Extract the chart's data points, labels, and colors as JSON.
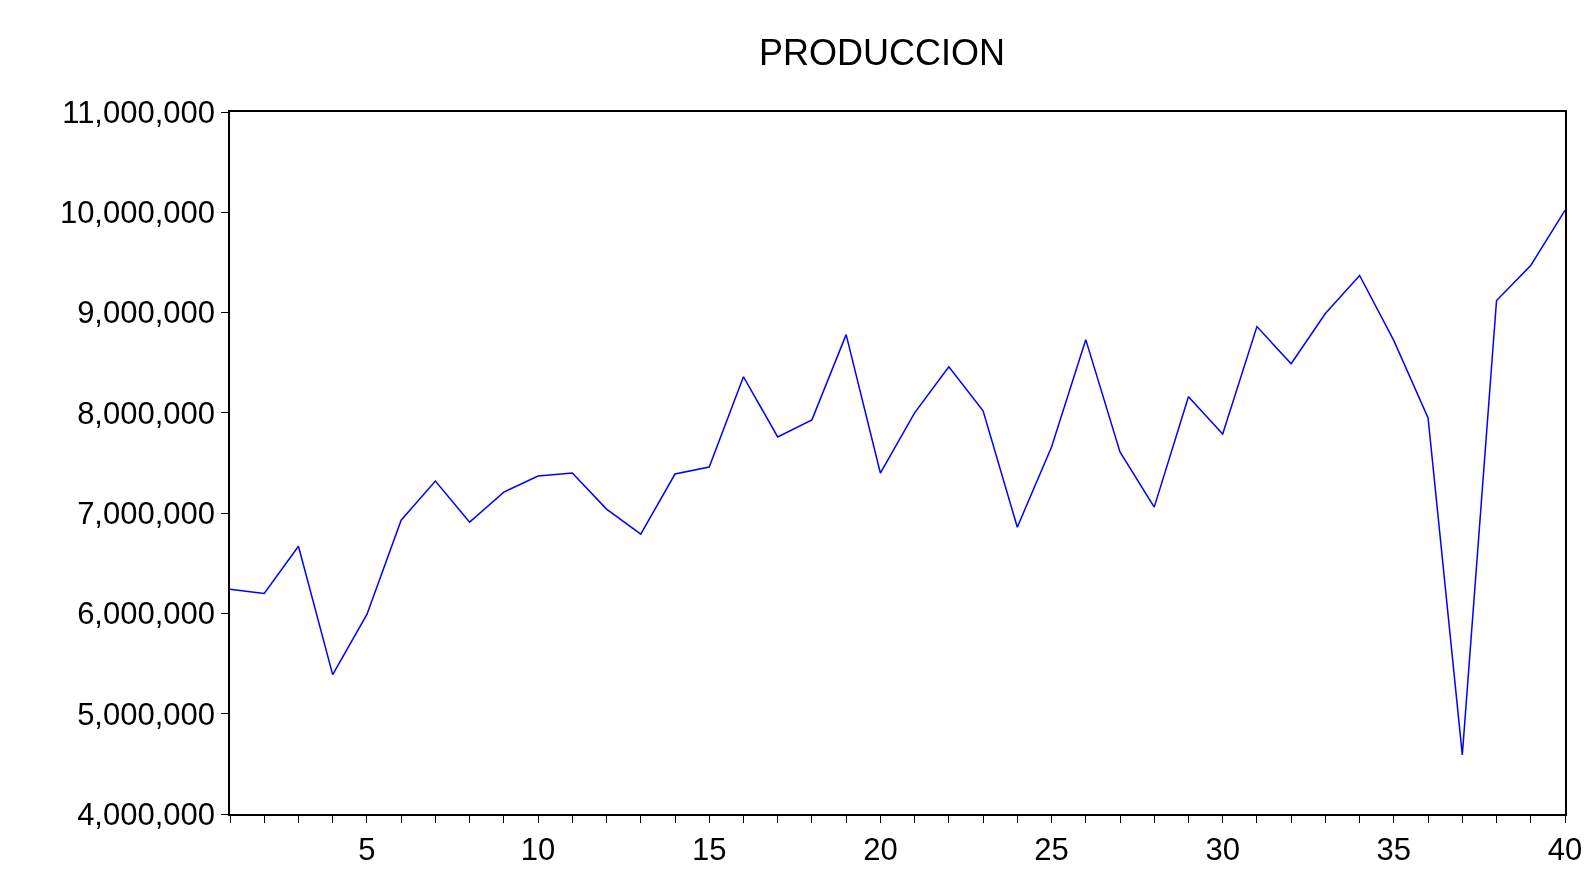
{
  "chart_data": {
    "type": "line",
    "title": "PRODUCCION",
    "x": [
      1,
      2,
      3,
      4,
      5,
      6,
      7,
      8,
      9,
      10,
      11,
      12,
      13,
      14,
      15,
      16,
      17,
      18,
      19,
      20,
      21,
      22,
      23,
      24,
      25,
      26,
      27,
      28,
      29,
      30,
      31,
      32,
      33,
      34,
      35,
      36,
      37,
      38,
      39,
      40
    ],
    "series": [
      {
        "color": "#0000ff",
        "values": [
          6240000,
          6200000,
          6670000,
          5390000,
          5990000,
          6930000,
          7320000,
          6910000,
          7210000,
          7370000,
          7400000,
          7040000,
          6790000,
          7390000,
          7460000,
          8360000,
          7760000,
          7930000,
          8780000,
          7400000,
          8000000,
          8460000,
          8020000,
          6860000,
          7660000,
          8730000,
          7610000,
          7060000,
          8160000,
          7790000,
          8860000,
          8490000,
          8990000,
          9370000,
          8720000,
          7950000,
          4590000,
          9120000,
          9470000,
          10020000
        ]
      }
    ],
    "xlim": [
      1,
      40
    ],
    "xticks": [
      {
        "value": 1,
        "label": null
      },
      {
        "value": 2,
        "label": null
      },
      {
        "value": 3,
        "label": null
      },
      {
        "value": 4,
        "label": null
      },
      5,
      {
        "value": 6,
        "label": null
      },
      {
        "value": 7,
        "label": null
      },
      {
        "value": 8,
        "label": null
      },
      {
        "value": 9,
        "label": null
      },
      10,
      {
        "value": 11,
        "label": null
      },
      {
        "value": 12,
        "label": null
      },
      {
        "value": 13,
        "label": null
      },
      {
        "value": 14,
        "label": null
      },
      15,
      {
        "value": 16,
        "label": null
      },
      {
        "value": 17,
        "label": null
      },
      {
        "value": 18,
        "label": null
      },
      {
        "value": 19,
        "label": null
      },
      20,
      {
        "value": 21,
        "label": null
      },
      {
        "value": 22,
        "label": null
      },
      {
        "value": 23,
        "label": null
      },
      {
        "value": 24,
        "label": null
      },
      25,
      {
        "value": 26,
        "label": null
      },
      {
        "value": 27,
        "label": null
      },
      {
        "value": 28,
        "label": null
      },
      {
        "value": 29,
        "label": null
      },
      30,
      {
        "value": 31,
        "label": null
      },
      {
        "value": 32,
        "label": null
      },
      {
        "value": 33,
        "label": null
      },
      {
        "value": 34,
        "label": null
      },
      35,
      {
        "value": 36,
        "label": null
      },
      {
        "value": 37,
        "label": null
      },
      {
        "value": 38,
        "label": null
      },
      {
        "value": 39,
        "label": null
      },
      40
    ],
    "ylim": [
      4000000,
      11000000
    ],
    "yticks": [
      {
        "value": 4000000,
        "label": "4,000,000"
      },
      {
        "value": 5000000,
        "label": "5,000,000"
      },
      {
        "value": 6000000,
        "label": "6,000,000"
      },
      {
        "value": 7000000,
        "label": "7,000,000"
      },
      {
        "value": 8000000,
        "label": "8,000,000"
      },
      {
        "value": 9000000,
        "label": "9,000,000"
      },
      {
        "value": 10000000,
        "label": "10,000,000"
      },
      {
        "value": 11000000,
        "label": "11,000,000"
      }
    ],
    "legend": false,
    "marker": "none",
    "line_style": "solid"
  }
}
